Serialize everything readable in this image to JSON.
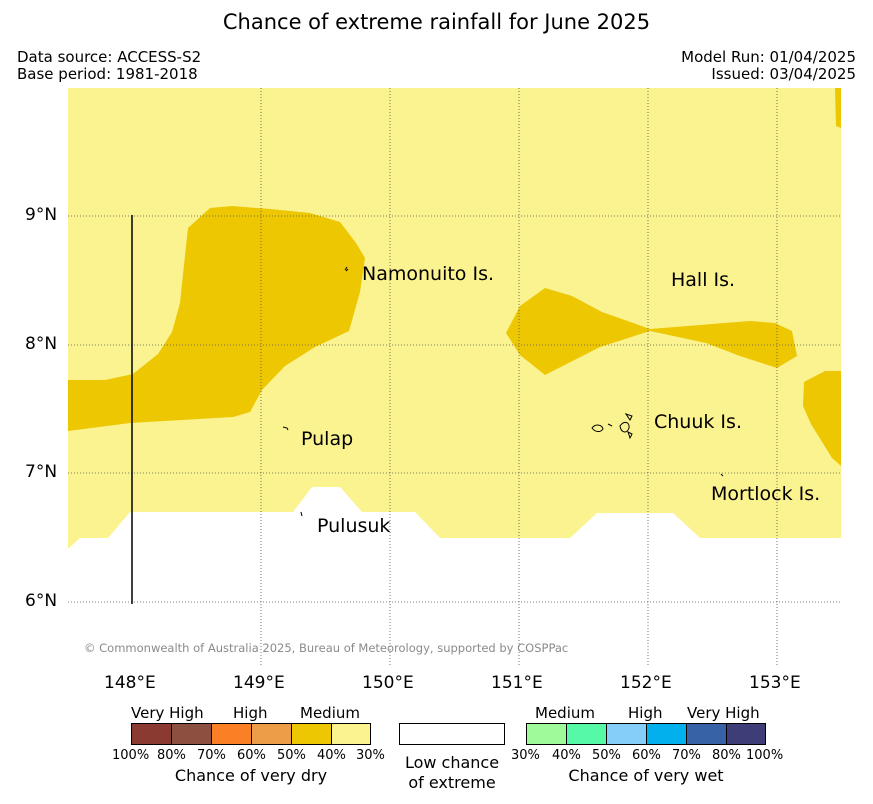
{
  "title": "Chance of extreme rainfall for June 2025",
  "meta": {
    "data_source": "Data source: ACCESS-S2",
    "base_period": "Base period: 1981-2018",
    "model_run": "Model Run: 01/04/2025",
    "issued": "Issued: 03/04/2025"
  },
  "axes": {
    "lat_labels": [
      "9°N",
      "8°N",
      "7°N",
      "6°N"
    ],
    "lon_labels": [
      "148°E",
      "149°E",
      "150°E",
      "151°E",
      "152°E",
      "153°E"
    ]
  },
  "islands": [
    "Namonuito Is.",
    "Hall Is.",
    "Chuuk Is.",
    "Pulap",
    "Mortlock Is.",
    "Pulusuk"
  ],
  "copyright": "© Commonwealth of Australia 2025, Bureau of Meteorology, supported by COSPPac",
  "regions": [
    {
      "category": "Chance of very dry",
      "level": "30%-40%",
      "color": "#fbf38f"
    },
    {
      "category": "Chance of very dry",
      "level": "40%-50%",
      "color": "#ecc702"
    },
    {
      "category": "Low chance of extreme",
      "level": "",
      "color": "#ffffff"
    }
  ],
  "legend": {
    "dry": {
      "categories": [
        "Very High",
        "High",
        "Medium"
      ],
      "percents": [
        "100%",
        "80%",
        "70%",
        "60%",
        "50%",
        "40%",
        "30%"
      ],
      "colors": [
        "#8b3a32",
        "#8c5040",
        "#fb7f24",
        "#ed9d48",
        "#ecc702",
        "#fbf38f"
      ],
      "caption": "Chance of very dry"
    },
    "low": {
      "caption_line1": "Low chance",
      "caption_line2": "of extreme",
      "color": "#ffffff"
    },
    "wet": {
      "categories": [
        "Medium",
        "High",
        "Very High"
      ],
      "percents": [
        "30%",
        "40%",
        "50%",
        "60%",
        "70%",
        "80%",
        "100%"
      ],
      "colors": [
        "#9ffb9a",
        "#56f9a5",
        "#86cefa",
        "#02b0ee",
        "#3763a6",
        "#3e3d78"
      ],
      "caption": "Chance of very wet"
    }
  }
}
